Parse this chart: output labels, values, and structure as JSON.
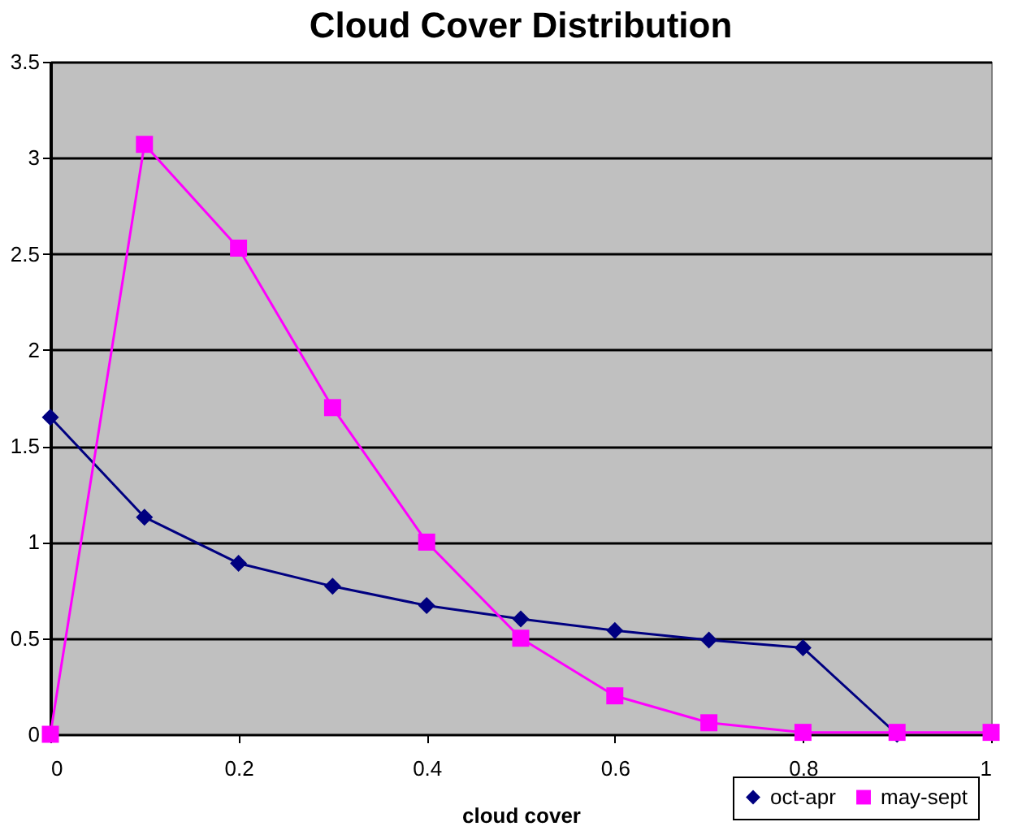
{
  "chart_data": {
    "type": "line",
    "title": "Cloud Cover Distribution",
    "xlabel": "cloud cover",
    "x": [
      0,
      0.1,
      0.2,
      0.3,
      0.4,
      0.5,
      0.6,
      0.7,
      0.8,
      0.9,
      1
    ],
    "series": [
      {
        "name": "oct-apr",
        "color": "#000080",
        "marker": "diamond",
        "x": [
          0,
          0.1,
          0.2,
          0.3,
          0.4,
          0.5,
          0.6,
          0.7,
          0.8,
          0.9
        ],
        "values": [
          1.65,
          1.13,
          0.89,
          0.77,
          0.67,
          0.6,
          0.54,
          0.49,
          0.45,
          0
        ]
      },
      {
        "name": "may-sept",
        "color": "#ff00ff",
        "marker": "square",
        "values": [
          0,
          3.07,
          2.53,
          1.7,
          1.0,
          0.5,
          0.2,
          0.06,
          0.01,
          0.01,
          0.01
        ]
      }
    ],
    "xlim": [
      0,
      1
    ],
    "xticks": [
      0,
      0.2,
      0.4,
      0.6,
      0.8,
      1
    ],
    "ylim": [
      0,
      3.5
    ],
    "yticks": [
      0,
      0.5,
      1,
      1.5,
      2,
      2.5,
      3,
      3.5
    ],
    "grid": "y",
    "legend": "bottom right",
    "line_style": "solid"
  }
}
